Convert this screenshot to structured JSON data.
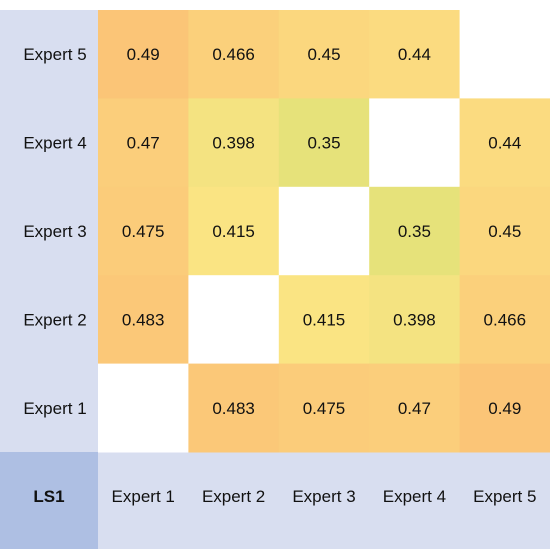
{
  "chart_data": {
    "type": "heatmap",
    "corner_label": "LS1",
    "x_labels": [
      "Expert 1",
      "Expert 2",
      "Expert 3",
      "Expert 4",
      "Expert 5"
    ],
    "y_labels": [
      "Expert 5",
      "Expert 4",
      "Expert 3",
      "Expert 2",
      "Expert 1"
    ],
    "cells": [
      [
        "0.49",
        "0.466",
        "0.45",
        "0.44",
        ""
      ],
      [
        "0.47",
        "0.398",
        "0.35",
        "",
        "0.44"
      ],
      [
        "0.475",
        "0.415",
        "",
        "0.35",
        "0.45"
      ],
      [
        "0.483",
        "",
        "0.415",
        "0.398",
        "0.466"
      ],
      [
        "",
        "0.483",
        "0.475",
        "0.47",
        "0.49"
      ]
    ],
    "color_scale": {
      "low": "#e6e27a",
      "mid": "#fbe484",
      "high": "#fbc577"
    },
    "label_bg": "#d8def0",
    "corner_bg": "#aebfe3"
  }
}
